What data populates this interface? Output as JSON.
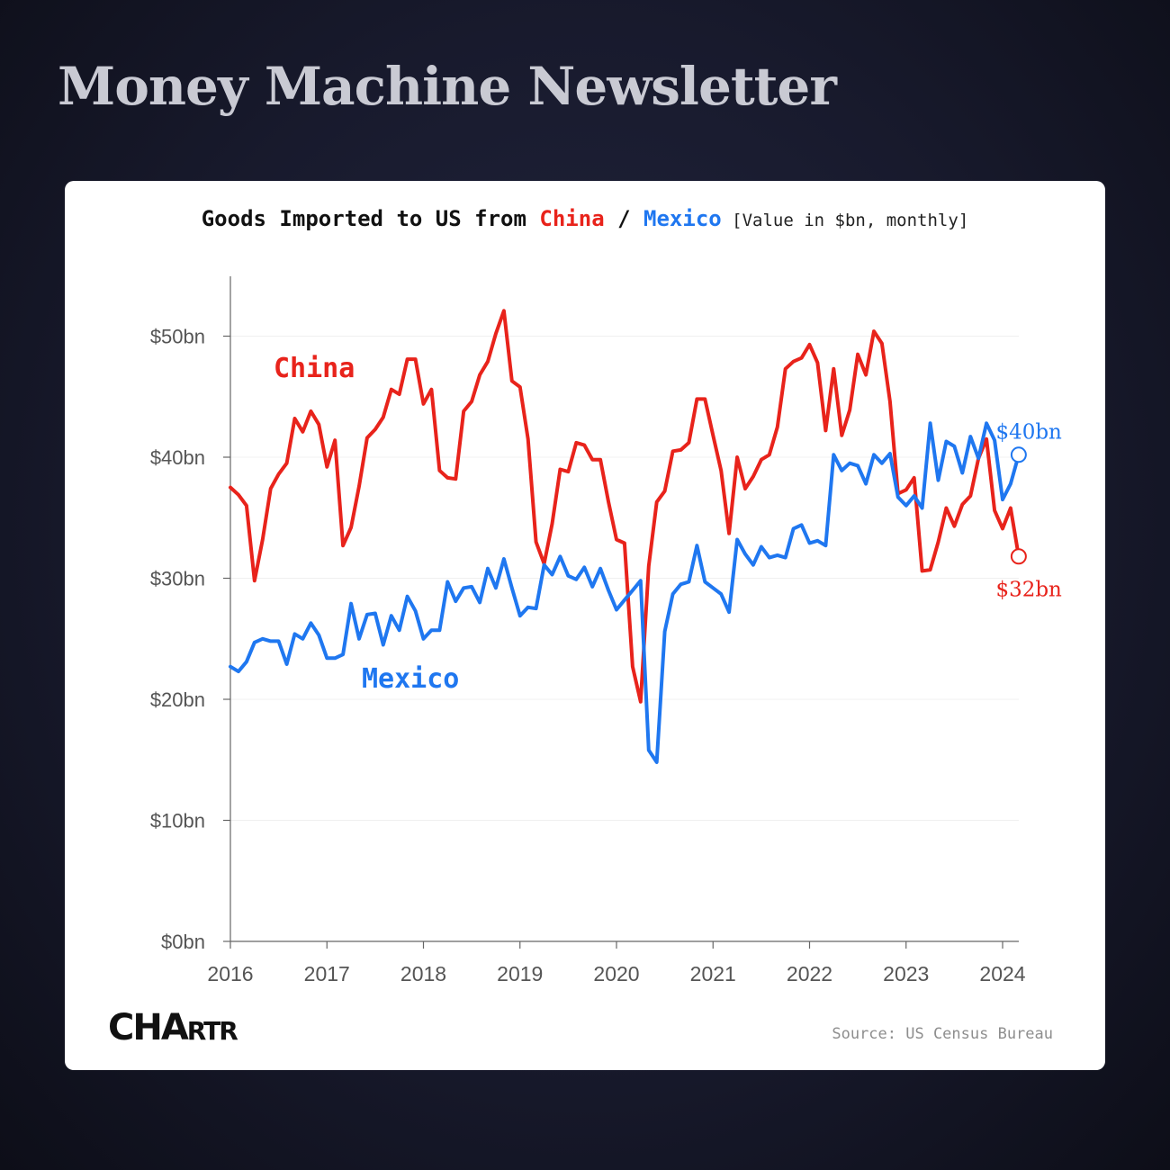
{
  "page": {
    "title": "Money Machine Newsletter"
  },
  "chart_title": {
    "prefix": "Goods Imported to US from ",
    "china": "China",
    "separator": " / ",
    "mexico": "Mexico",
    "unit": " [Value in $bn, monthly]"
  },
  "brand": {
    "logo": "CHARTR"
  },
  "source": "Source: US Census Bureau",
  "colors": {
    "china": "#e8231b",
    "mexico": "#1f77f0",
    "background": "#181a2d",
    "card": "#ffffff"
  },
  "chart_data": {
    "type": "line",
    "title": "Goods Imported to US from China / Mexico [Value in $bn, monthly]",
    "xlabel": "",
    "ylabel": "",
    "x_ticks": [
      "2016",
      "2017",
      "2018",
      "2019",
      "2020",
      "2021",
      "2022",
      "2023",
      "2024"
    ],
    "y_ticks": [
      "$0bn",
      "$10bn",
      "$20bn",
      "$30bn",
      "$40bn",
      "$50bn"
    ],
    "ylim": [
      0,
      55
    ],
    "xlim": [
      "2016-01",
      "2024-02"
    ],
    "grid": "horizontal",
    "x_start": "2016-01",
    "frequency": "monthly",
    "series": [
      {
        "name": "China",
        "label": "China",
        "color": "#e8231b",
        "end_label": "$32bn",
        "values": [
          37.5,
          36.9,
          36.0,
          29.8,
          33.2,
          37.4,
          38.6,
          39.5,
          43.2,
          42.1,
          43.8,
          42.7,
          39.2,
          41.4,
          32.7,
          34.2,
          37.6,
          41.6,
          42.3,
          43.3,
          45.6,
          45.2,
          48.1,
          48.1,
          44.4,
          45.6,
          38.9,
          38.3,
          38.2,
          43.8,
          44.6,
          46.8,
          47.9,
          50.2,
          52.1,
          46.3,
          45.8,
          41.5,
          33.0,
          31.2,
          34.5,
          39.0,
          38.8,
          41.2,
          41.0,
          39.8,
          39.8,
          36.3,
          33.2,
          32.9,
          22.7,
          19.8,
          31.0,
          36.3,
          37.2,
          40.5,
          40.6,
          41.2,
          44.8,
          44.8,
          41.8,
          38.9,
          33.7,
          40.0,
          37.4,
          38.4,
          39.8,
          40.2,
          42.5,
          47.3,
          47.9,
          48.2,
          49.3,
          47.8,
          42.2,
          47.3,
          41.8,
          43.9,
          48.5,
          46.8,
          50.4,
          49.4,
          44.6,
          37.0,
          37.3,
          38.3,
          30.6,
          30.7,
          33.0,
          35.8,
          34.3,
          36.1,
          36.8,
          39.9,
          41.5,
          35.6,
          34.1,
          35.8,
          31.8
        ]
      },
      {
        "name": "Mexico",
        "label": "Mexico",
        "color": "#1f77f0",
        "end_label": "$40bn",
        "values": [
          22.7,
          22.3,
          23.1,
          24.7,
          25.0,
          24.8,
          24.8,
          22.9,
          25.4,
          25.0,
          26.3,
          25.3,
          23.4,
          23.4,
          23.7,
          27.9,
          25.0,
          27.0,
          27.1,
          24.5,
          26.9,
          25.7,
          28.5,
          27.3,
          25.0,
          25.7,
          25.7,
          29.7,
          28.1,
          29.2,
          29.3,
          28.0,
          30.8,
          29.2,
          31.6,
          29.2,
          26.9,
          27.6,
          27.5,
          31.1,
          30.3,
          31.8,
          30.2,
          29.9,
          30.9,
          29.3,
          30.8,
          29.0,
          27.4,
          28.2,
          29.0,
          29.8,
          15.8,
          14.8,
          25.6,
          28.7,
          29.5,
          29.7,
          32.7,
          29.7,
          29.2,
          28.7,
          27.2,
          33.2,
          32.0,
          31.1,
          32.6,
          31.7,
          31.9,
          31.7,
          34.1,
          34.4,
          32.9,
          33.1,
          32.7,
          40.2,
          38.9,
          39.5,
          39.3,
          37.8,
          40.2,
          39.5,
          40.3,
          36.7,
          36.0,
          36.8,
          35.8,
          42.8,
          38.1,
          41.3,
          40.9,
          38.7,
          41.7,
          39.9,
          42.8,
          41.4,
          36.5,
          37.8,
          40.2
        ]
      }
    ]
  }
}
